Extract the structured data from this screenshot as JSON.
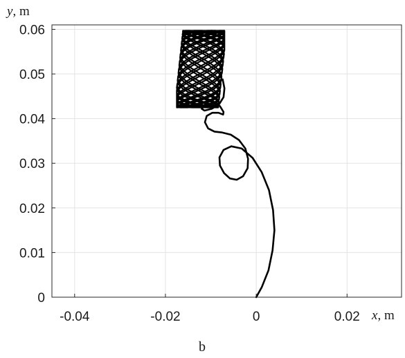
{
  "chart_data": {
    "type": "line",
    "x_axis": {
      "var": "x",
      "unit": ", m",
      "lim": [
        -0.045,
        0.032
      ],
      "ticks": [
        -0.04,
        -0.02,
        0,
        0.02
      ],
      "tick_labels": [
        "-0.04",
        "-0.02",
        "0",
        "0.02"
      ]
    },
    "y_axis": {
      "var": "y",
      "unit": ", m",
      "lim": [
        0,
        0.061
      ],
      "ticks": [
        0,
        0.01,
        0.02,
        0.03,
        0.04,
        0.05,
        0.06
      ],
      "tick_labels": [
        "0",
        "0.01",
        "0.02",
        "0.03",
        "0.04",
        "0.05",
        "0.06"
      ]
    },
    "grid": true,
    "caption": "b",
    "trajectory": {
      "color": "#000000",
      "transient": [
        [
          0.0,
          0.0
        ],
        [
          0.0012,
          0.0022
        ],
        [
          0.0027,
          0.006
        ],
        [
          0.0036,
          0.0105
        ],
        [
          0.004,
          0.015
        ],
        [
          0.0037,
          0.0195
        ],
        [
          0.0028,
          0.024
        ],
        [
          0.0012,
          0.028
        ],
        [
          -0.0008,
          0.0312
        ],
        [
          -0.0032,
          0.0333
        ],
        [
          -0.0055,
          0.0338
        ],
        [
          -0.0072,
          0.033
        ],
        [
          -0.0081,
          0.0313
        ],
        [
          -0.008,
          0.0295
        ],
        [
          -0.0071,
          0.0278
        ],
        [
          -0.0058,
          0.0266
        ],
        [
          -0.0043,
          0.0263
        ],
        [
          -0.0029,
          0.0271
        ],
        [
          -0.0019,
          0.0289
        ],
        [
          -0.0018,
          0.031
        ],
        [
          -0.0024,
          0.0333
        ],
        [
          -0.0038,
          0.0352
        ],
        [
          -0.0056,
          0.0364
        ],
        [
          -0.0075,
          0.0369
        ],
        [
          -0.0092,
          0.0371
        ],
        [
          -0.0106,
          0.0378
        ],
        [
          -0.0113,
          0.0392
        ],
        [
          -0.0109,
          0.0406
        ],
        [
          -0.0097,
          0.0413
        ],
        [
          -0.0083,
          0.0413
        ],
        [
          -0.0073,
          0.0409
        ],
        [
          -0.0072,
          0.0415
        ],
        [
          -0.008,
          0.0428
        ],
        [
          -0.0095,
          0.0435
        ],
        [
          -0.0112,
          0.0432
        ],
        [
          -0.012,
          0.0422
        ],
        [
          -0.0114,
          0.0418
        ],
        [
          -0.0098,
          0.0422
        ],
        [
          -0.0082,
          0.0432
        ],
        [
          -0.0072,
          0.0448
        ],
        [
          -0.007,
          0.0468
        ],
        [
          -0.0074,
          0.0488
        ]
      ],
      "attractor": {
        "x_min": -0.0175,
        "x_max": -0.007,
        "y_min": 0.042,
        "y_max": 0.0602,
        "x_amp": 0.0048,
        "y_amp": 0.0086,
        "omega_x": 3.1,
        "omega_y": 1.0,
        "tilt": 0.08,
        "phase": 1.2,
        "turns": 13
      }
    }
  }
}
